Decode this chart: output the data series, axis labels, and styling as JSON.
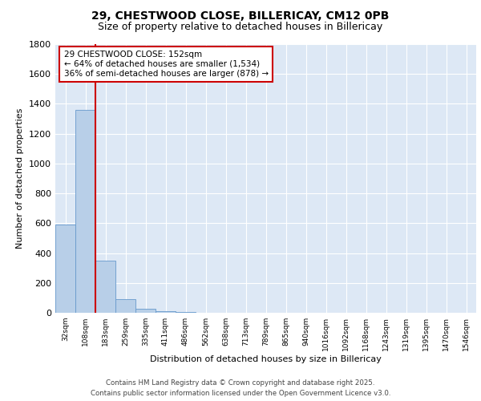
{
  "title_line1": "29, CHESTWOOD CLOSE, BILLERICAY, CM12 0PB",
  "title_line2": "Size of property relative to detached houses in Billericay",
  "xlabel": "Distribution of detached houses by size in Billericay",
  "ylabel": "Number of detached properties",
  "bar_labels": [
    "32sqm",
    "108sqm",
    "183sqm",
    "259sqm",
    "335sqm",
    "411sqm",
    "486sqm",
    "562sqm",
    "638sqm",
    "713sqm",
    "789sqm",
    "865sqm",
    "940sqm",
    "1016sqm",
    "1092sqm",
    "1168sqm",
    "1243sqm",
    "1319sqm",
    "1395sqm",
    "1470sqm",
    "1546sqm"
  ],
  "bar_values": [
    590,
    1360,
    350,
    90,
    28,
    12,
    5,
    2,
    0,
    0,
    0,
    0,
    0,
    0,
    0,
    0,
    0,
    0,
    0,
    0,
    0
  ],
  "bar_color": "#b8cfe8",
  "bar_edgecolor": "#6699cc",
  "bg_color": "#dde8f5",
  "grid_color": "#ffffff",
  "vline_x": 1.5,
  "vline_color": "#cc0000",
  "ylim": [
    0,
    1800
  ],
  "yticks": [
    0,
    200,
    400,
    600,
    800,
    1000,
    1200,
    1400,
    1600,
    1800
  ],
  "annotation_text": "29 CHESTWOOD CLOSE: 152sqm\n← 64% of detached houses are smaller (1,534)\n36% of semi-detached houses are larger (878) →",
  "annotation_box_facecolor": "#ffffff",
  "annotation_box_edgecolor": "#cc0000",
  "footer_line1": "Contains HM Land Registry data © Crown copyright and database right 2025.",
  "footer_line2": "Contains public sector information licensed under the Open Government Licence v3.0."
}
